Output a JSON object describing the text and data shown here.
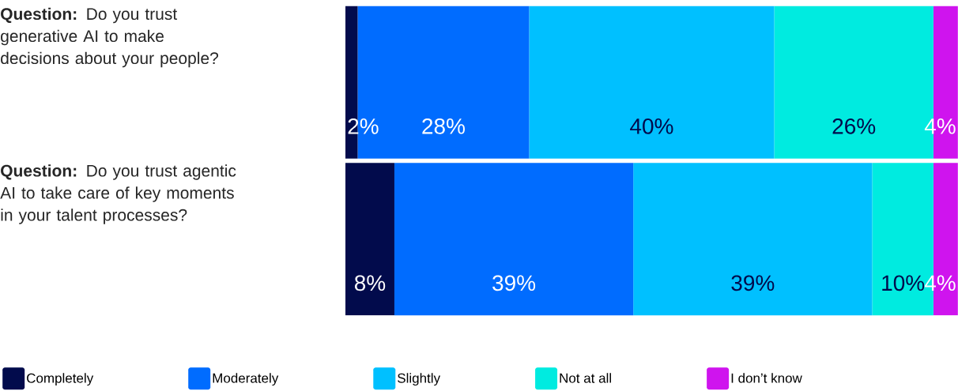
{
  "chart_data": {
    "type": "bar",
    "orientation": "horizontal",
    "stacked": true,
    "categories": [
      "**Question:** Do you trust generative AI to make decisions about your people?",
      "**Question:** Do you trust agentic AI to take care of key moments in your talent processes?"
    ],
    "xlim": [
      0,
      100
    ],
    "series": [
      {
        "name": "Completely",
        "color": "#020b4c",
        "values": [
          2,
          8
        ],
        "value_labels": [
          "2%",
          "8%"
        ]
      },
      {
        "name": "Moderately",
        "color": "#006cff",
        "values": [
          28,
          39
        ],
        "value_labels": [
          "28%",
          "39%"
        ]
      },
      {
        "name": "Slightly",
        "color": "#00c0ff",
        "values": [
          40,
          39
        ],
        "value_labels": [
          "40%",
          "39%"
        ]
      },
      {
        "name": "Not at all",
        "color": "#00ebe0",
        "values": [
          26,
          10
        ],
        "value_labels": [
          "26%",
          "10%"
        ]
      },
      {
        "name": "I don’t know",
        "color": "#cf14ee",
        "values": [
          4,
          4
        ],
        "value_labels": [
          "4%",
          "4%"
        ]
      }
    ],
    "legend": "bottom",
    "tick_labels": "y",
    "grid": false
  }
}
